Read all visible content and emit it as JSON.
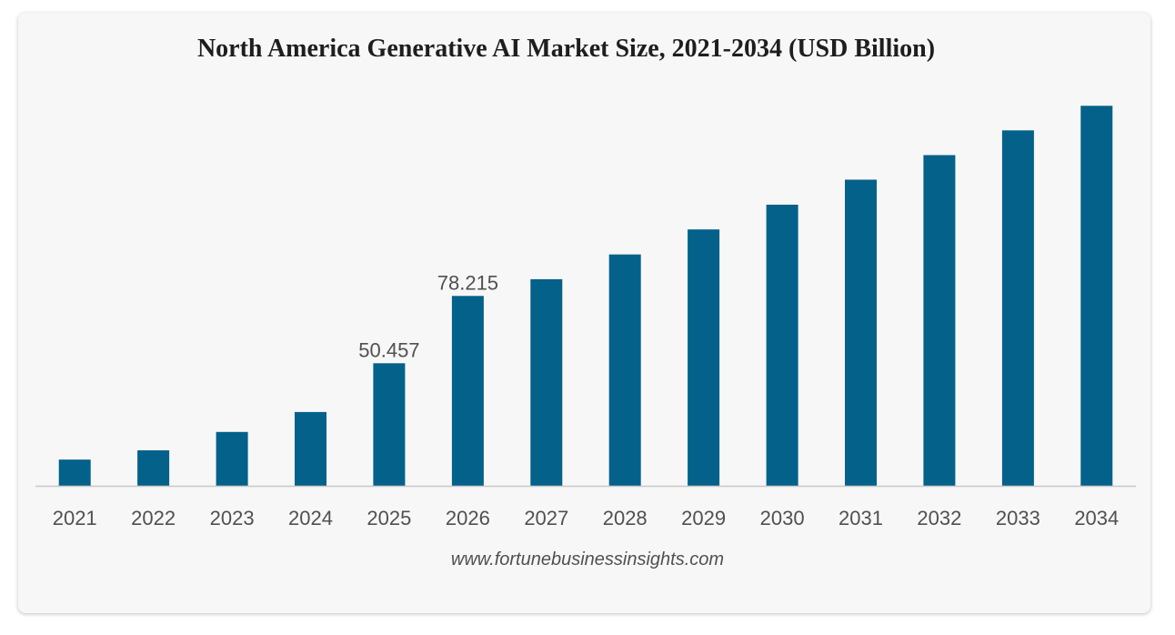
{
  "chart_data": {
    "type": "bar",
    "title": "North America Generative AI Market Size, 2021-2034 (USD Billion)",
    "xlabel": "",
    "ylabel": "",
    "categories": [
      "2021",
      "2022",
      "2023",
      "2024",
      "2025",
      "2026",
      "2027",
      "2028",
      "2029",
      "2030",
      "2031",
      "2032",
      "2033",
      "2034"
    ],
    "values": [
      10.8,
      14.6,
      22.2,
      30.4,
      50.457,
      78.215,
      85.1,
      95.3,
      105.6,
      115.8,
      126.1,
      136.2,
      146.4,
      156.5
    ],
    "data_labels": [
      {
        "index": 4,
        "text": "50.457"
      },
      {
        "index": 5,
        "text": "78.215"
      }
    ],
    "ylim": [
      0,
      160
    ],
    "grid": false,
    "legend": "none",
    "bar_color": "#03618a",
    "axis_color": "#c8c8c8"
  },
  "source": "www.fortunebusinessinsights.com"
}
